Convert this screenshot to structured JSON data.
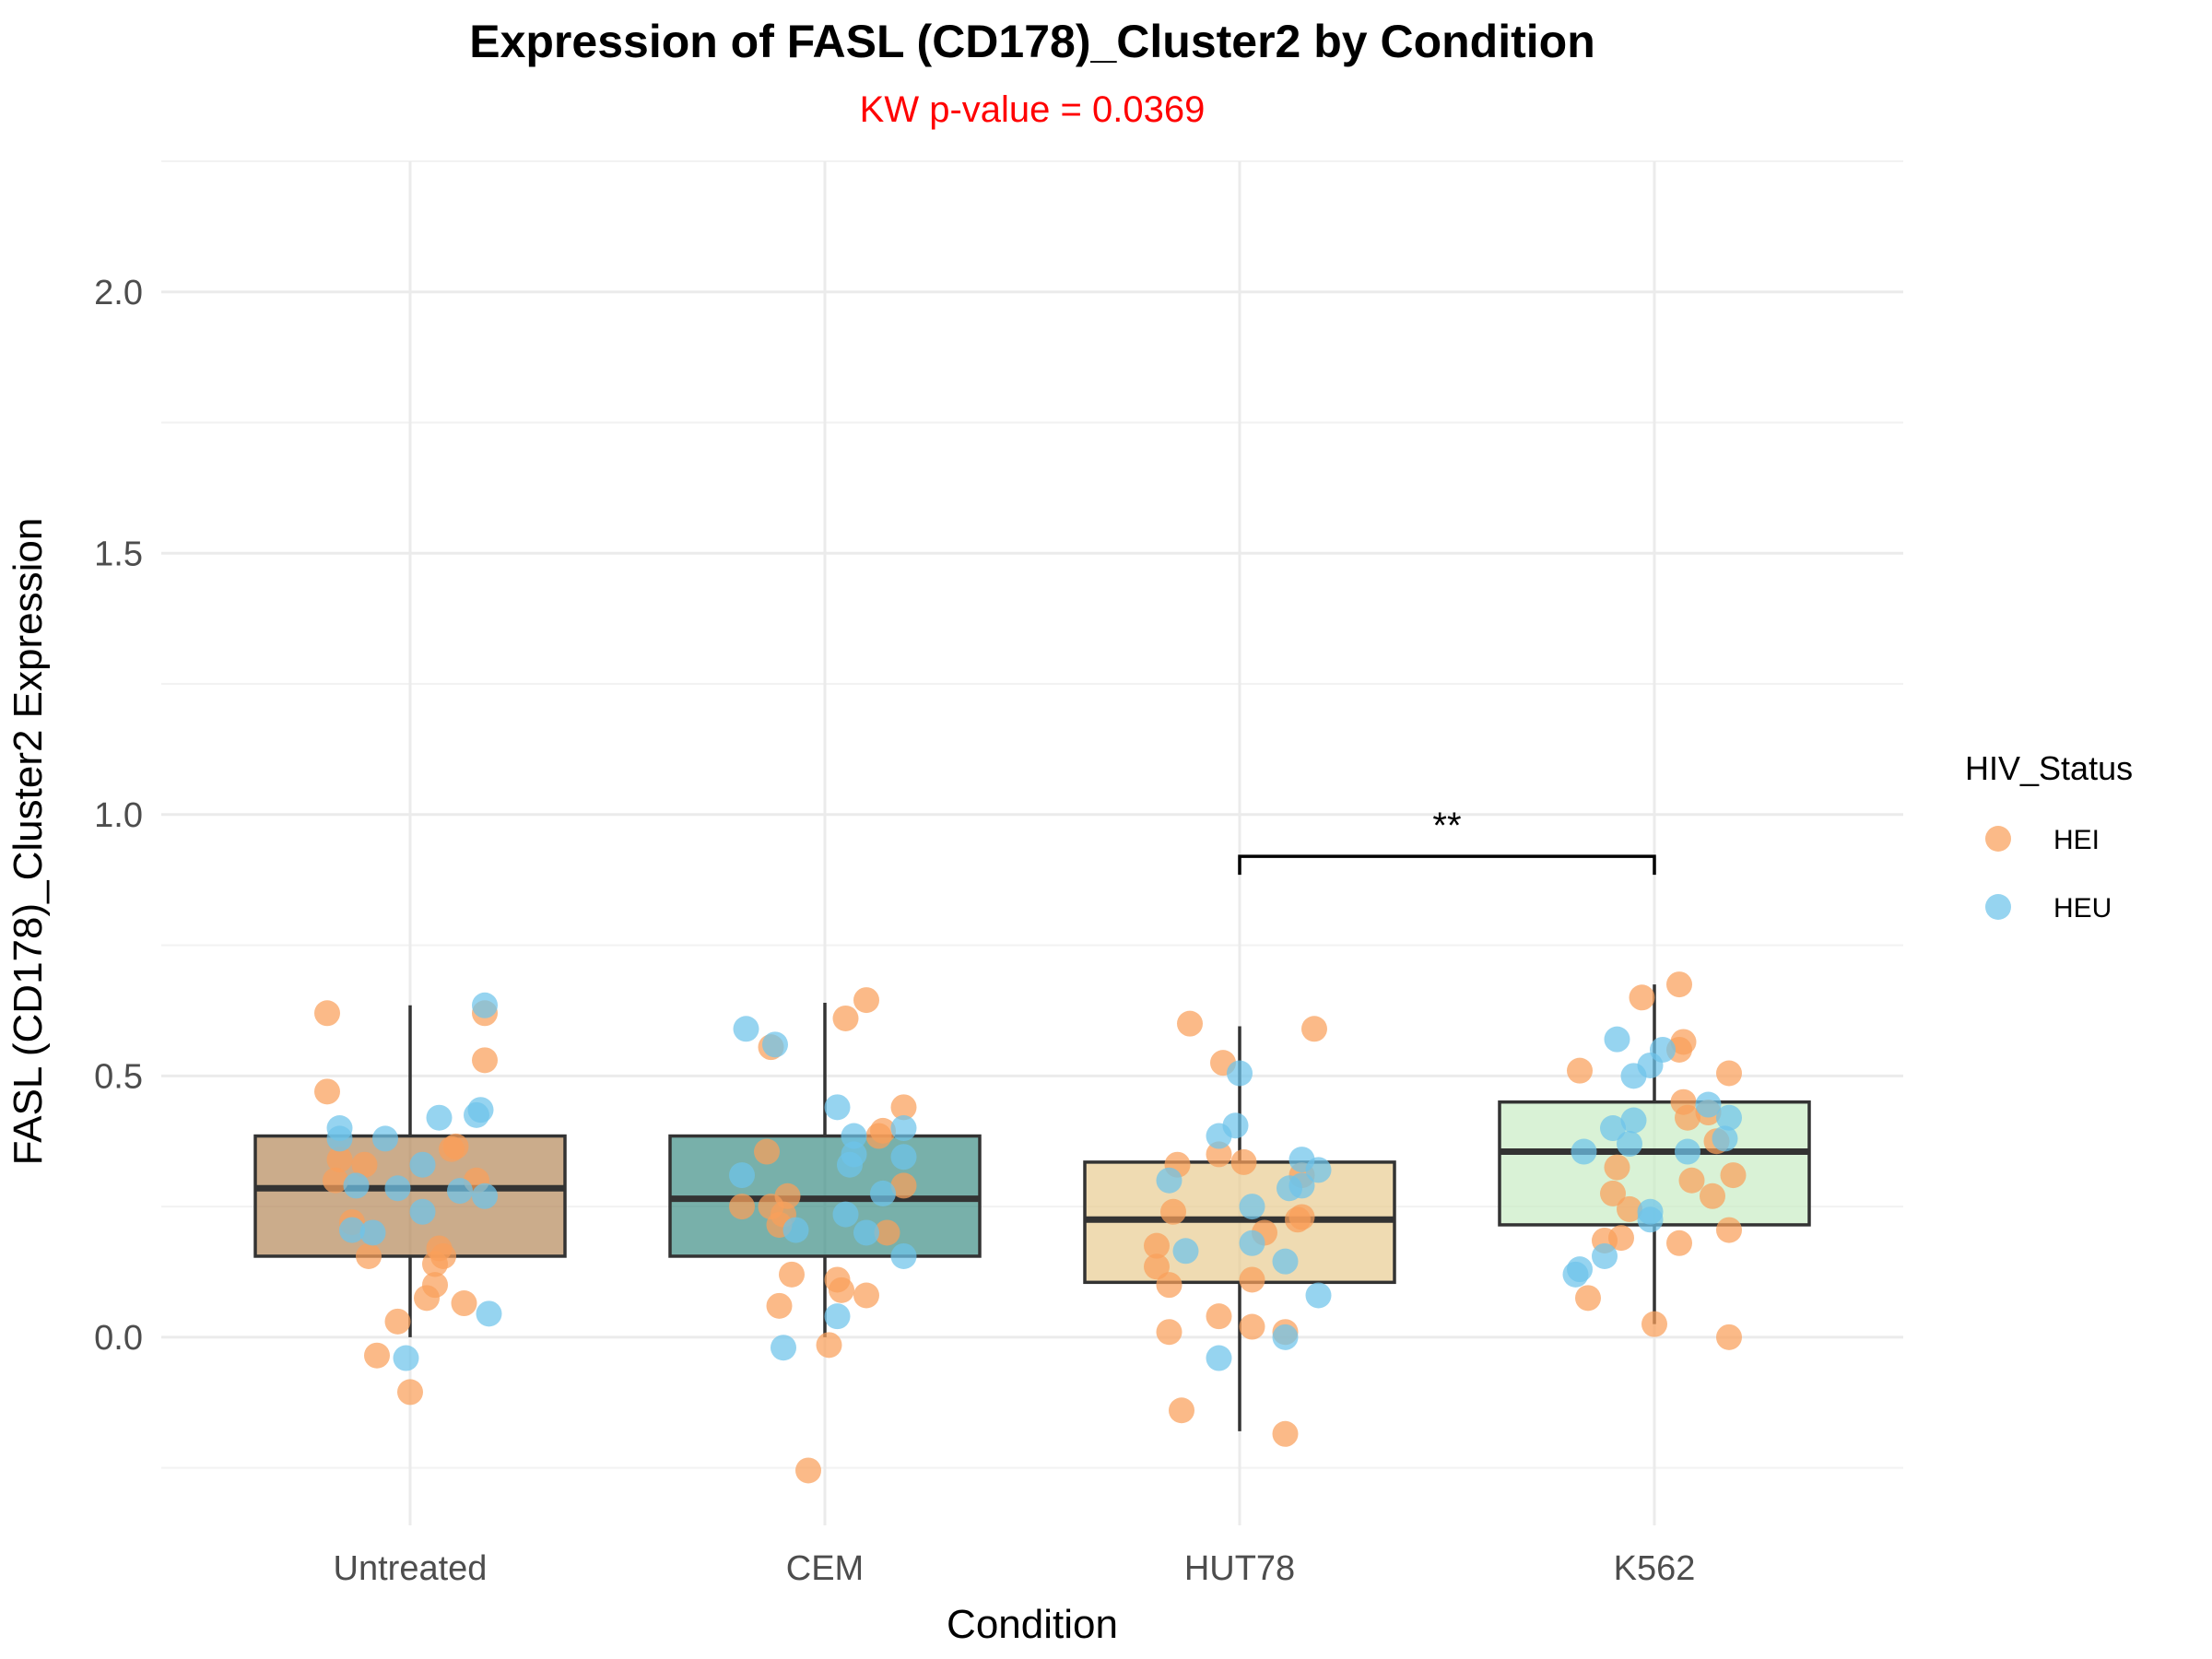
{
  "chart_data": {
    "type": "box",
    "title": "Expression of FASL (CD178)_Cluster2 by Condition",
    "subtitle": "KW p-value = 0.0369",
    "xlabel": "Condition",
    "ylabel": "FASL (CD178)_Cluster2 Expression",
    "ylim": [
      -0.36,
      2.25
    ],
    "y_ticks": [
      0.0,
      0.5,
      1.0,
      1.5,
      2.0
    ],
    "y_tick_labels": [
      "0.0",
      "0.5",
      "1.0",
      "1.5",
      "2.0"
    ],
    "grid": true,
    "categories": [
      "Untreated",
      "CEM",
      "HUT78",
      "K562"
    ],
    "boxes": [
      {
        "category": "Untreated",
        "fill": "#b5895a",
        "q1": 0.155,
        "median": 0.285,
        "q3": 0.385,
        "whisker_low": 0.0,
        "whisker_high": 0.635
      },
      {
        "category": "CEM",
        "fill": "#3f8f86",
        "q1": 0.155,
        "median": 0.265,
        "q3": 0.385,
        "whisker_low": 0.0,
        "whisker_high": 0.64
      },
      {
        "category": "HUT78",
        "fill": "#e8cc92",
        "q1": 0.105,
        "median": 0.225,
        "q3": 0.335,
        "whisker_low": -0.18,
        "whisker_high": 0.595
      },
      {
        "category": "K562",
        "fill": "#c9ecc4",
        "q1": 0.215,
        "median": 0.355,
        "q3": 0.45,
        "whisker_low": 0.025,
        "whisker_high": 0.675
      }
    ],
    "legend": {
      "title": "HIV_Status",
      "position": "right",
      "entries": [
        {
          "label": "HEI",
          "color": "#f9a05a"
        },
        {
          "label": "HEU",
          "color": "#6ec4ea"
        }
      ]
    },
    "significance": {
      "from": "HUT78",
      "to": "K562",
      "y": 0.92,
      "label": "**"
    },
    "series": [
      {
        "name": "HEI",
        "color": "#f9a05a",
        "points": [
          {
            "x": "Untreated",
            "dx": -0.2,
            "y": 0.62
          },
          {
            "x": "Untreated",
            "dx": -0.2,
            "y": 0.47
          },
          {
            "x": "Untreated",
            "dx": -0.17,
            "y": 0.34
          },
          {
            "x": "Untreated",
            "dx": -0.18,
            "y": 0.3
          },
          {
            "x": "Untreated",
            "dx": -0.11,
            "y": 0.33
          },
          {
            "x": "Untreated",
            "dx": -0.14,
            "y": 0.22
          },
          {
            "x": "Untreated",
            "dx": -0.1,
            "y": 0.155
          },
          {
            "x": "Untreated",
            "dx": -0.03,
            "y": 0.03
          },
          {
            "x": "Untreated",
            "dx": -0.08,
            "y": -0.035
          },
          {
            "x": "Untreated",
            "dx": 0.0,
            "y": -0.105
          },
          {
            "x": "Untreated",
            "dx": 0.04,
            "y": 0.075
          },
          {
            "x": "Untreated",
            "dx": 0.06,
            "y": 0.1
          },
          {
            "x": "Untreated",
            "dx": 0.06,
            "y": 0.14
          },
          {
            "x": "Untreated",
            "dx": 0.07,
            "y": 0.17
          },
          {
            "x": "Untreated",
            "dx": 0.08,
            "y": 0.155
          },
          {
            "x": "Untreated",
            "dx": 0.1,
            "y": 0.36
          },
          {
            "x": "Untreated",
            "dx": 0.11,
            "y": 0.365
          },
          {
            "x": "Untreated",
            "dx": 0.13,
            "y": 0.065
          },
          {
            "x": "Untreated",
            "dx": 0.16,
            "y": 0.3
          },
          {
            "x": "Untreated",
            "dx": 0.18,
            "y": 0.53
          },
          {
            "x": "Untreated",
            "dx": 0.18,
            "y": 0.62
          },
          {
            "x": "CEM",
            "dx": -0.2,
            "y": 0.25
          },
          {
            "x": "CEM",
            "dx": -0.14,
            "y": 0.355
          },
          {
            "x": "CEM",
            "dx": -0.13,
            "y": 0.25
          },
          {
            "x": "CEM",
            "dx": -0.11,
            "y": 0.215
          },
          {
            "x": "CEM",
            "dx": -0.11,
            "y": 0.06
          },
          {
            "x": "CEM",
            "dx": -0.08,
            "y": 0.12
          },
          {
            "x": "CEM",
            "dx": -0.1,
            "y": 0.235
          },
          {
            "x": "CEM",
            "dx": -0.09,
            "y": 0.27
          },
          {
            "x": "CEM",
            "dx": -0.04,
            "y": -0.255
          },
          {
            "x": "CEM",
            "dx": -0.13,
            "y": 0.555
          },
          {
            "x": "CEM",
            "dx": 0.01,
            "y": -0.015
          },
          {
            "x": "CEM",
            "dx": 0.03,
            "y": 0.11
          },
          {
            "x": "CEM",
            "dx": 0.04,
            "y": 0.09
          },
          {
            "x": "CEM",
            "dx": 0.05,
            "y": 0.61
          },
          {
            "x": "CEM",
            "dx": 0.1,
            "y": 0.645
          },
          {
            "x": "CEM",
            "dx": 0.1,
            "y": 0.08
          },
          {
            "x": "CEM",
            "dx": 0.13,
            "y": 0.385
          },
          {
            "x": "CEM",
            "dx": 0.14,
            "y": 0.395
          },
          {
            "x": "CEM",
            "dx": 0.15,
            "y": 0.2
          },
          {
            "x": "CEM",
            "dx": 0.19,
            "y": 0.29
          },
          {
            "x": "CEM",
            "dx": 0.19,
            "y": 0.44
          },
          {
            "x": "HUT78",
            "dx": -0.2,
            "y": 0.175
          },
          {
            "x": "HUT78",
            "dx": -0.2,
            "y": 0.135
          },
          {
            "x": "HUT78",
            "dx": -0.17,
            "y": 0.1
          },
          {
            "x": "HUT78",
            "dx": -0.17,
            "y": 0.01
          },
          {
            "x": "HUT78",
            "dx": -0.16,
            "y": 0.24
          },
          {
            "x": "HUT78",
            "dx": -0.15,
            "y": 0.33
          },
          {
            "x": "HUT78",
            "dx": -0.14,
            "y": -0.14
          },
          {
            "x": "HUT78",
            "dx": -0.12,
            "y": 0.6
          },
          {
            "x": "HUT78",
            "dx": -0.05,
            "y": 0.35
          },
          {
            "x": "HUT78",
            "dx": -0.05,
            "y": 0.04
          },
          {
            "x": "HUT78",
            "dx": -0.04,
            "y": 0.525
          },
          {
            "x": "HUT78",
            "dx": 0.01,
            "y": 0.335
          },
          {
            "x": "HUT78",
            "dx": 0.03,
            "y": 0.11
          },
          {
            "x": "HUT78",
            "dx": 0.03,
            "y": 0.02
          },
          {
            "x": "HUT78",
            "dx": 0.06,
            "y": 0.2
          },
          {
            "x": "HUT78",
            "dx": 0.11,
            "y": 0.01
          },
          {
            "x": "HUT78",
            "dx": 0.11,
            "y": -0.185
          },
          {
            "x": "HUT78",
            "dx": 0.14,
            "y": 0.225
          },
          {
            "x": "HUT78",
            "dx": 0.15,
            "y": 0.23
          },
          {
            "x": "HUT78",
            "dx": 0.15,
            "y": 0.31
          },
          {
            "x": "HUT78",
            "dx": 0.18,
            "y": 0.59
          },
          {
            "x": "K562",
            "dx": -0.18,
            "y": 0.51
          },
          {
            "x": "K562",
            "dx": -0.16,
            "y": 0.075
          },
          {
            "x": "K562",
            "dx": -0.12,
            "y": 0.185
          },
          {
            "x": "K562",
            "dx": -0.1,
            "y": 0.275
          },
          {
            "x": "K562",
            "dx": -0.09,
            "y": 0.325
          },
          {
            "x": "K562",
            "dx": -0.08,
            "y": 0.19
          },
          {
            "x": "K562",
            "dx": -0.06,
            "y": 0.245
          },
          {
            "x": "K562",
            "dx": -0.03,
            "y": 0.65
          },
          {
            "x": "K562",
            "dx": 0.0,
            "y": 0.025
          },
          {
            "x": "K562",
            "dx": 0.06,
            "y": 0.18
          },
          {
            "x": "K562",
            "dx": 0.06,
            "y": 0.55
          },
          {
            "x": "K562",
            "dx": 0.06,
            "y": 0.675
          },
          {
            "x": "K562",
            "dx": 0.07,
            "y": 0.565
          },
          {
            "x": "K562",
            "dx": 0.07,
            "y": 0.45
          },
          {
            "x": "K562",
            "dx": 0.08,
            "y": 0.42
          },
          {
            "x": "K562",
            "dx": 0.09,
            "y": 0.3
          },
          {
            "x": "K562",
            "dx": 0.13,
            "y": 0.43
          },
          {
            "x": "K562",
            "dx": 0.14,
            "y": 0.27
          },
          {
            "x": "K562",
            "dx": 0.15,
            "y": 0.375
          },
          {
            "x": "K562",
            "dx": 0.18,
            "y": 0.205
          },
          {
            "x": "K562",
            "dx": 0.18,
            "y": 0.505
          },
          {
            "x": "K562",
            "dx": 0.19,
            "y": 0.31
          },
          {
            "x": "K562",
            "dx": 0.18,
            "y": 0.0
          }
        ]
      },
      {
        "name": "HEU",
        "color": "#6ec4ea",
        "points": [
          {
            "x": "Untreated",
            "dx": 0.18,
            "y": 0.635
          },
          {
            "x": "Untreated",
            "dx": 0.17,
            "y": 0.435
          },
          {
            "x": "Untreated",
            "dx": 0.16,
            "y": 0.425
          },
          {
            "x": "Untreated",
            "dx": 0.07,
            "y": 0.42
          },
          {
            "x": "Untreated",
            "dx": 0.12,
            "y": 0.28
          },
          {
            "x": "Untreated",
            "dx": 0.18,
            "y": 0.27
          },
          {
            "x": "Untreated",
            "dx": 0.19,
            "y": 0.045
          },
          {
            "x": "Untreated",
            "dx": 0.03,
            "y": 0.33
          },
          {
            "x": "Untreated",
            "dx": 0.03,
            "y": 0.24
          },
          {
            "x": "Untreated",
            "dx": -0.06,
            "y": 0.38
          },
          {
            "x": "Untreated",
            "dx": -0.17,
            "y": 0.4
          },
          {
            "x": "Untreated",
            "dx": -0.17,
            "y": 0.38
          },
          {
            "x": "Untreated",
            "dx": -0.13,
            "y": 0.29
          },
          {
            "x": "Untreated",
            "dx": -0.14,
            "y": 0.205
          },
          {
            "x": "Untreated",
            "dx": -0.09,
            "y": 0.2
          },
          {
            "x": "Untreated",
            "dx": -0.03,
            "y": 0.285
          },
          {
            "x": "Untreated",
            "dx": -0.01,
            "y": -0.04
          },
          {
            "x": "CEM",
            "dx": -0.19,
            "y": 0.59
          },
          {
            "x": "CEM",
            "dx": -0.12,
            "y": 0.56
          },
          {
            "x": "CEM",
            "dx": -0.2,
            "y": 0.31
          },
          {
            "x": "CEM",
            "dx": -0.1,
            "y": -0.02
          },
          {
            "x": "CEM",
            "dx": 0.03,
            "y": 0.44
          },
          {
            "x": "CEM",
            "dx": 0.07,
            "y": 0.385
          },
          {
            "x": "CEM",
            "dx": 0.07,
            "y": 0.35
          },
          {
            "x": "CEM",
            "dx": 0.06,
            "y": 0.33
          },
          {
            "x": "CEM",
            "dx": 0.05,
            "y": 0.235
          },
          {
            "x": "CEM",
            "dx": 0.1,
            "y": 0.2
          },
          {
            "x": "CEM",
            "dx": 0.03,
            "y": 0.04
          },
          {
            "x": "CEM",
            "dx": 0.19,
            "y": 0.4
          },
          {
            "x": "CEM",
            "dx": 0.19,
            "y": 0.345
          },
          {
            "x": "CEM",
            "dx": 0.14,
            "y": 0.275
          },
          {
            "x": "CEM",
            "dx": 0.19,
            "y": 0.155
          },
          {
            "x": "CEM",
            "dx": -0.07,
            "y": 0.205
          },
          {
            "x": "HUT78",
            "dx": -0.17,
            "y": 0.3
          },
          {
            "x": "HUT78",
            "dx": -0.13,
            "y": 0.165
          },
          {
            "x": "HUT78",
            "dx": -0.05,
            "y": 0.385
          },
          {
            "x": "HUT78",
            "dx": -0.01,
            "y": 0.405
          },
          {
            "x": "HUT78",
            "dx": 0.0,
            "y": 0.505
          },
          {
            "x": "HUT78",
            "dx": 0.03,
            "y": 0.25
          },
          {
            "x": "HUT78",
            "dx": 0.03,
            "y": 0.18
          },
          {
            "x": "HUT78",
            "dx": -0.05,
            "y": -0.04
          },
          {
            "x": "HUT78",
            "dx": 0.12,
            "y": 0.285
          },
          {
            "x": "HUT78",
            "dx": 0.15,
            "y": 0.34
          },
          {
            "x": "HUT78",
            "dx": 0.15,
            "y": 0.29
          },
          {
            "x": "HUT78",
            "dx": 0.11,
            "y": 0.145
          },
          {
            "x": "HUT78",
            "dx": 0.19,
            "y": 0.32
          },
          {
            "x": "HUT78",
            "dx": 0.19,
            "y": 0.08
          },
          {
            "x": "HUT78",
            "dx": 0.11,
            "y": 0.0
          },
          {
            "x": "K562",
            "dx": -0.09,
            "y": 0.57
          },
          {
            "x": "K562",
            "dx": -0.1,
            "y": 0.4
          },
          {
            "x": "K562",
            "dx": -0.17,
            "y": 0.355
          },
          {
            "x": "K562",
            "dx": -0.06,
            "y": 0.37
          },
          {
            "x": "K562",
            "dx": -0.05,
            "y": 0.415
          },
          {
            "x": "K562",
            "dx": -0.05,
            "y": 0.5
          },
          {
            "x": "K562",
            "dx": -0.01,
            "y": 0.52
          },
          {
            "x": "K562",
            "dx": 0.02,
            "y": 0.55
          },
          {
            "x": "K562",
            "dx": -0.12,
            "y": 0.155
          },
          {
            "x": "K562",
            "dx": -0.18,
            "y": 0.13
          },
          {
            "x": "K562",
            "dx": -0.19,
            "y": 0.12
          },
          {
            "x": "K562",
            "dx": -0.01,
            "y": 0.225
          },
          {
            "x": "K562",
            "dx": -0.01,
            "y": 0.24
          },
          {
            "x": "K562",
            "dx": 0.08,
            "y": 0.355
          },
          {
            "x": "K562",
            "dx": 0.13,
            "y": 0.445
          },
          {
            "x": "K562",
            "dx": 0.18,
            "y": 0.42
          },
          {
            "x": "K562",
            "dx": 0.17,
            "y": 0.38
          }
        ]
      }
    ]
  }
}
